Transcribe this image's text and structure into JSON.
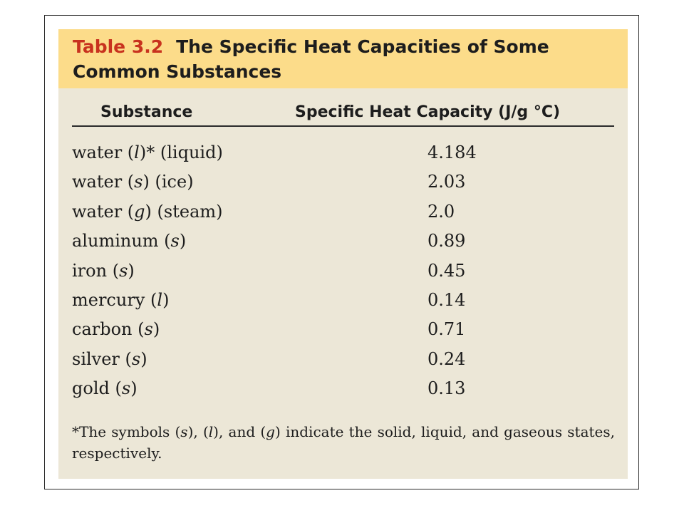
{
  "title": {
    "table_number": "Table 3.2",
    "line1": "The Specific Heat Capacities of Some",
    "line2": "Common Substances"
  },
  "columns": {
    "substance": "Substance",
    "capacity": "Specific Heat Capacity (J/g °C)"
  },
  "rows": [
    {
      "name": "water",
      "state": "l",
      "suffix": "* (liquid)",
      "value": "4.184"
    },
    {
      "name": "water",
      "state": "s",
      "suffix": " (ice)",
      "value": "2.03"
    },
    {
      "name": "water",
      "state": "g",
      "suffix": " (steam)",
      "value": "2.0"
    },
    {
      "name": "aluminum",
      "state": "s",
      "suffix": "",
      "value": "0.89"
    },
    {
      "name": "iron",
      "state": "s",
      "suffix": "",
      "value": "0.45"
    },
    {
      "name": "mercury",
      "state": "l",
      "suffix": "",
      "value": "0.14"
    },
    {
      "name": "carbon",
      "state": "s",
      "suffix": "",
      "value": "0.71"
    },
    {
      "name": "silver",
      "state": "s",
      "suffix": "",
      "value": "0.24"
    },
    {
      "name": "gold",
      "state": "s",
      "suffix": "",
      "value": "0.13"
    }
  ],
  "footnote": "*The symbols (s), (l), and (g) indicate the solid, liquid, and gaseous states, respectively.",
  "colors": {
    "title_band": "#fcdc8a",
    "table_number": "#c8321e",
    "card_background": "#ece7d7"
  }
}
